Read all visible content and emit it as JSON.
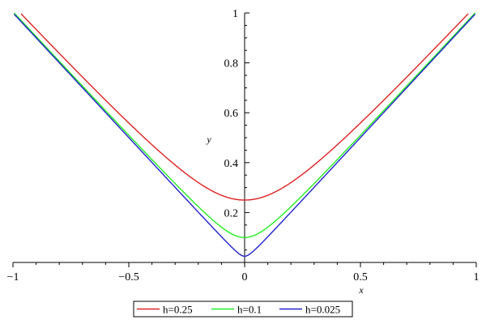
{
  "chart_data": {
    "type": "line",
    "xlabel": "x",
    "ylabel": "y",
    "xlim": [
      -1,
      1
    ],
    "ylim": [
      0,
      1
    ],
    "x_ticks": [
      -1,
      -0.5,
      0,
      0.5,
      1
    ],
    "x_tick_labels": [
      "−1",
      "−0.5",
      "0",
      "0.5",
      "1"
    ],
    "y_ticks": [
      0.2,
      0.4,
      0.6,
      0.8,
      1
    ],
    "y_tick_labels": [
      "0.2",
      "0.4",
      "0.6",
      "0.8",
      "1"
    ],
    "grid": false,
    "legend_position": "bottom",
    "series": [
      {
        "name": "h=0.25",
        "color": "#dd2222",
        "h": 0.25
      },
      {
        "name": "h=0.1",
        "color": "#22ee22",
        "h": 0.1
      },
      {
        "name": "h=0.025",
        "color": "#2222cc",
        "h": 0.025
      }
    ]
  }
}
